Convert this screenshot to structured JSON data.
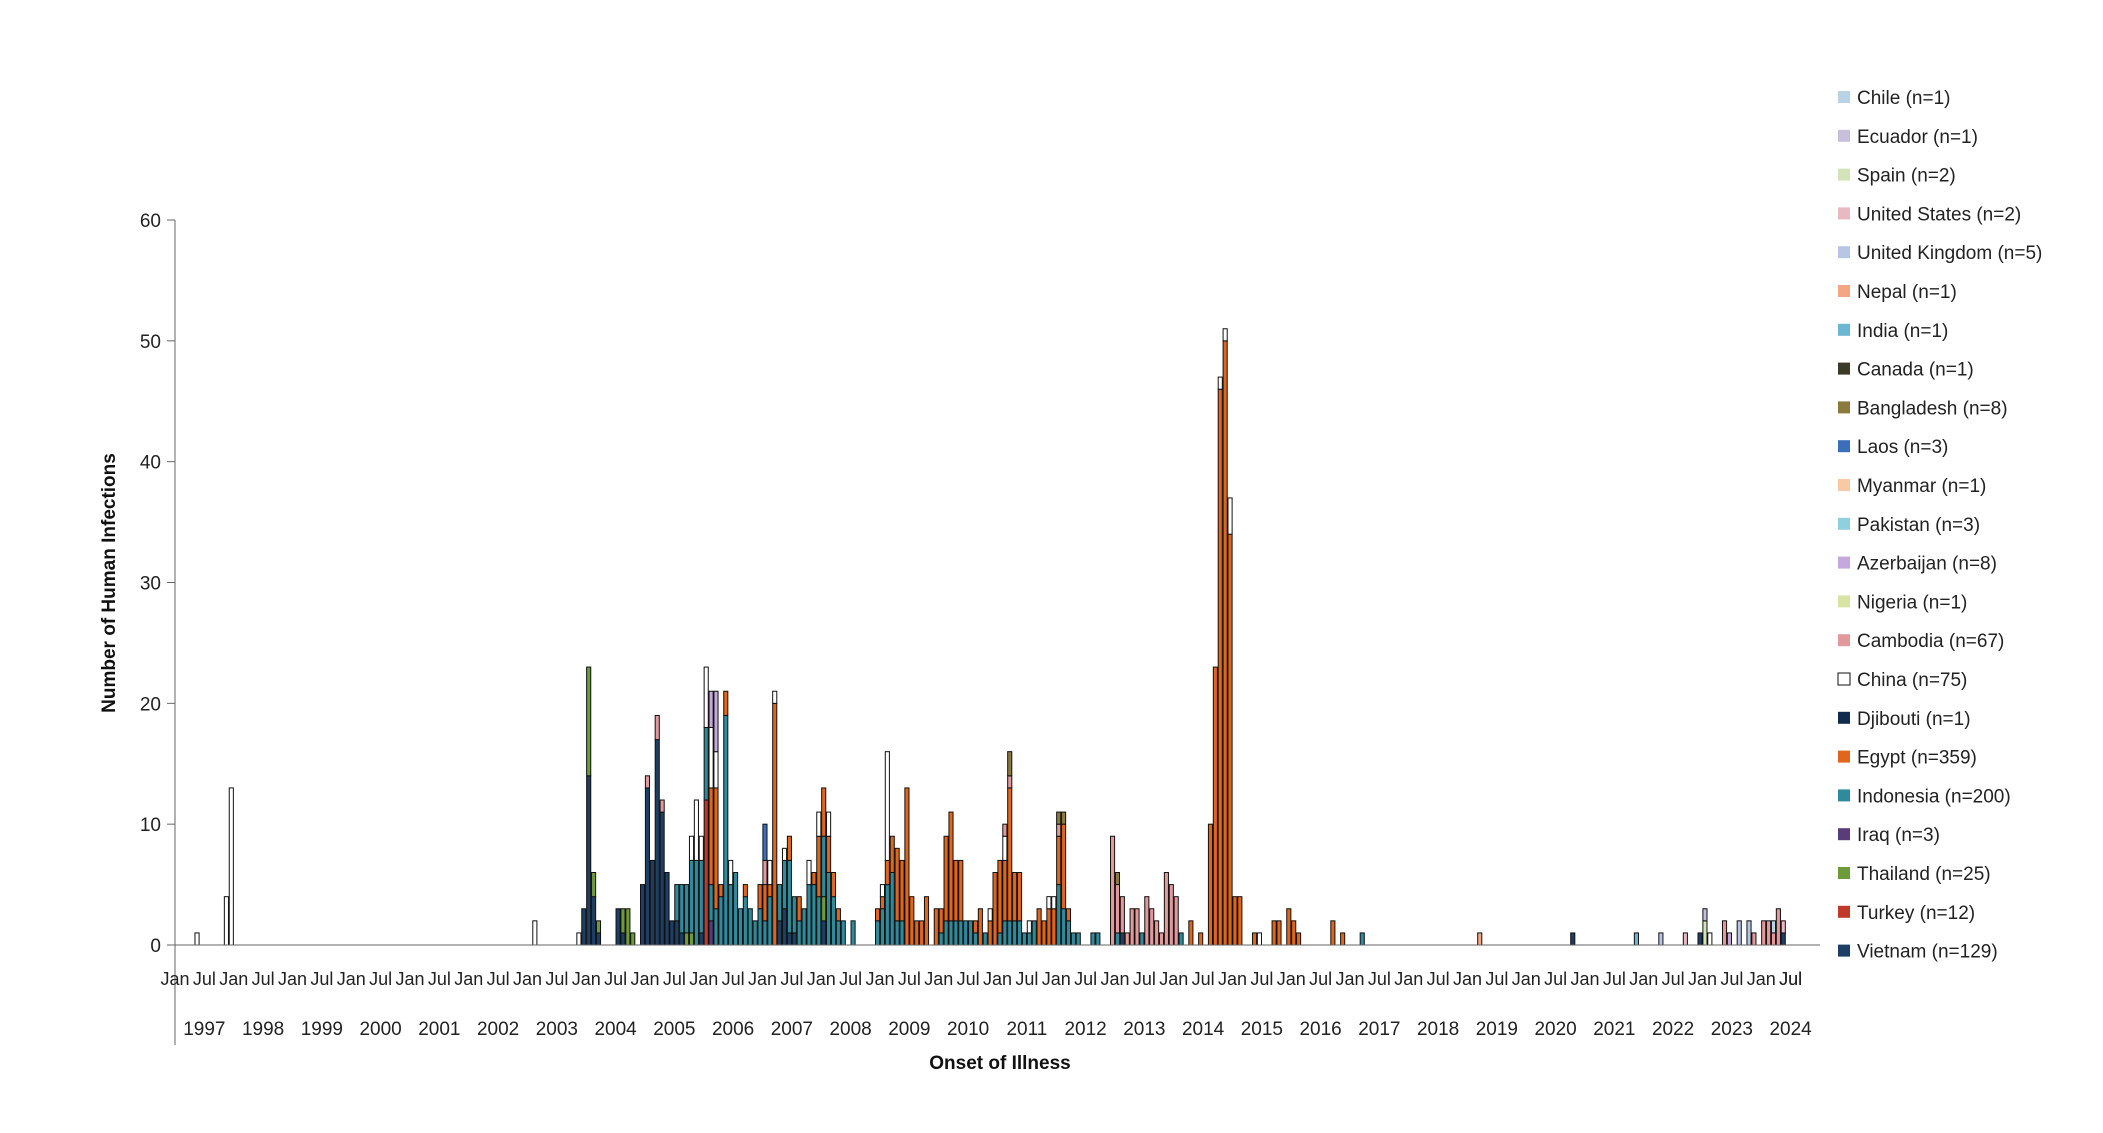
{
  "chart_data": {
    "type": "bar",
    "stacked": true,
    "ylabel": "Number of Human Infections",
    "xlabel": "Onset of Illness",
    "ylim": [
      0,
      60
    ],
    "yticks": [
      0,
      10,
      20,
      30,
      40,
      50,
      60
    ],
    "grid": false,
    "legend_position": "right",
    "x_start_year": 1997,
    "x_end_year": 2024,
    "month_tick_labels": [
      "Jan",
      "Jul"
    ],
    "year_labels": [
      "1997",
      "1998",
      "1999",
      "2000",
      "2001",
      "2002",
      "2003",
      "2004",
      "2005",
      "2006",
      "2007",
      "2008",
      "2009",
      "2010",
      "2011",
      "2012",
      "2013",
      "2014",
      "2015",
      "2016",
      "2017",
      "2018",
      "2019",
      "2020",
      "2021",
      "2022",
      "2023",
      "2024"
    ],
    "last_tick_label": "Jul",
    "legend": [
      {
        "name": "Chile (n=1)",
        "color": "#b9d3e6"
      },
      {
        "name": "Ecuador (n=1)",
        "color": "#c8bfdc"
      },
      {
        "name": "Spain (n=2)",
        "color": "#d3e4b8"
      },
      {
        "name": "United States (n=2)",
        "color": "#e8b9c0"
      },
      {
        "name": "United Kingdom (n=5)",
        "color": "#b8c6e6"
      },
      {
        "name": "Nepal (n=1)",
        "color": "#f4a582"
      },
      {
        "name": "India (n=1)",
        "color": "#6bb6d1"
      },
      {
        "name": "Canada (n=1)",
        "color": "#3a3a26"
      },
      {
        "name": "Bangladesh (n=8)",
        "color": "#8c7a3c"
      },
      {
        "name": "Laos (n=3)",
        "color": "#3c6fb9"
      },
      {
        "name": "Myanmar (n=1)",
        "color": "#f8c9a2"
      },
      {
        "name": "Pakistan (n=3)",
        "color": "#8ecfe0"
      },
      {
        "name": "Azerbaijan (n=8)",
        "color": "#c5a9dd"
      },
      {
        "name": "Nigeria (n=1)",
        "color": "#d8e4a3"
      },
      {
        "name": "Cambodia (n=67)",
        "color": "#e3999c"
      },
      {
        "name": "China (n=75)",
        "color": "#ffffff"
      },
      {
        "name": "Djibouti (n=1)",
        "color": "#102a4c"
      },
      {
        "name": "Egypt (n=359)",
        "color": "#e0661b"
      },
      {
        "name": "Indonesia (n=200)",
        "color": "#2f8a9c"
      },
      {
        "name": "Iraq (n=3)",
        "color": "#5a3d78"
      },
      {
        "name": "Thailand (n=25)",
        "color": "#6e9b3a"
      },
      {
        "name": "Turkey (n=12)",
        "color": "#c0392b"
      },
      {
        "name": "Vietnam (n=129)",
        "color": "#1d3f66"
      }
    ],
    "bars": [
      {
        "x": "1997-05",
        "stack": {
          "China": 1
        }
      },
      {
        "x": "1997-11",
        "stack": {
          "China": 4
        }
      },
      {
        "x": "1997-12",
        "stack": {
          "China": 13
        }
      },
      {
        "x": "2003-02",
        "stack": {
          "China": 2
        }
      },
      {
        "x": "2003-11",
        "stack": {
          "China": 1
        }
      },
      {
        "x": "2003-12",
        "stack": {
          "Vietnam": 3
        }
      },
      {
        "x": "2004-01",
        "stack": {
          "Vietnam": 14,
          "Thailand": 9
        }
      },
      {
        "x": "2004-02",
        "stack": {
          "Vietnam": 4,
          "Thailand": 2
        }
      },
      {
        "x": "2004-03",
        "stack": {
          "Vietnam": 1,
          "Thailand": 1
        }
      },
      {
        "x": "2004-07",
        "stack": {
          "Vietnam": 3
        }
      },
      {
        "x": "2004-08",
        "stack": {
          "Thailand": 2,
          "Vietnam": 1
        }
      },
      {
        "x": "2004-09",
        "stack": {
          "Thailand": 3
        }
      },
      {
        "x": "2004-10",
        "stack": {
          "Thailand": 1
        }
      },
      {
        "x": "2004-12",
        "stack": {
          "Vietnam": 5
        }
      },
      {
        "x": "2005-01",
        "stack": {
          "Vietnam": 13,
          "Cambodia": 1
        }
      },
      {
        "x": "2005-02",
        "stack": {
          "Vietnam": 7
        }
      },
      {
        "x": "2005-03",
        "stack": {
          "Vietnam": 17,
          "Cambodia": 2
        }
      },
      {
        "x": "2005-04",
        "stack": {
          "Vietnam": 11,
          "Cambodia": 1
        }
      },
      {
        "x": "2005-05",
        "stack": {
          "Vietnam": 6
        }
      },
      {
        "x": "2005-06",
        "stack": {
          "Vietnam": 2
        }
      },
      {
        "x": "2005-07",
        "stack": {
          "Indonesia": 3,
          "Vietnam": 2
        }
      },
      {
        "x": "2005-08",
        "stack": {
          "Indonesia": 4,
          "Vietnam": 1
        }
      },
      {
        "x": "2005-09",
        "stack": {
          "Indonesia": 4,
          "Thailand": 1
        }
      },
      {
        "x": "2005-10",
        "stack": {
          "Indonesia": 6,
          "Thailand": 1,
          "China": 2
        }
      },
      {
        "x": "2005-11",
        "stack": {
          "Indonesia": 7,
          "China": 5
        }
      },
      {
        "x": "2005-12",
        "stack": {
          "Indonesia": 6,
          "China": 2,
          "Vietnam": 1
        }
      },
      {
        "x": "2006-01",
        "stack": {
          "Turkey": 12,
          "Indonesia": 6,
          "China": 5
        }
      },
      {
        "x": "2006-02",
        "stack": {
          "Indonesia": 3,
          "Egypt": 8,
          "Iraq": 2,
          "Azerbaijan": 3,
          "China": 5
        }
      },
      {
        "x": "2006-03",
        "stack": {
          "Egypt": 10,
          "Indonesia": 3,
          "Azerbaijan": 5,
          "China": 3
        }
      },
      {
        "x": "2006-04",
        "stack": {
          "Indonesia": 4,
          "Egypt": 1
        }
      },
      {
        "x": "2006-05",
        "stack": {
          "Indonesia": 19,
          "Egypt": 2
        }
      },
      {
        "x": "2006-06",
        "stack": {
          "Indonesia": 5,
          "China": 2
        }
      },
      {
        "x": "2006-07",
        "stack": {
          "Indonesia": 6
        }
      },
      {
        "x": "2006-08",
        "stack": {
          "Indonesia": 3
        }
      },
      {
        "x": "2006-09",
        "stack": {
          "Indonesia": 4,
          "Egypt": 1
        }
      },
      {
        "x": "2006-10",
        "stack": {
          "Indonesia": 3
        }
      },
      {
        "x": "2006-11",
        "stack": {
          "Indonesia": 2
        }
      },
      {
        "x": "2006-12",
        "stack": {
          "Indonesia": 3,
          "Egypt": 2
        }
      },
      {
        "x": "2007-01",
        "stack": {
          "Indonesia": 2,
          "Egypt": 3,
          "Cambodia": 2,
          "Laos": 3
        }
      },
      {
        "x": "2007-02",
        "stack": {
          "Indonesia": 4,
          "Egypt": 1,
          "China": 2
        }
      },
      {
        "x": "2007-03",
        "stack": {
          "Egypt": 20,
          "China": 1
        }
      },
      {
        "x": "2007-04",
        "stack": {
          "Indonesia": 3,
          "Vietnam": 2
        }
      },
      {
        "x": "2007-05",
        "stack": {
          "Indonesia": 4,
          "Vietnam": 3,
          "China": 1
        }
      },
      {
        "x": "2007-06",
        "stack": {
          "Egypt": 2,
          "Indonesia": 6,
          "Vietnam": 1
        }
      },
      {
        "x": "2007-07",
        "stack": {
          "Indonesia": 3,
          "Vietnam": 1
        }
      },
      {
        "x": "2007-08",
        "stack": {
          "Indonesia": 2,
          "Egypt": 2
        }
      },
      {
        "x": "2007-09",
        "stack": {
          "Indonesia": 3
        }
      },
      {
        "x": "2007-10",
        "stack": {
          "Indonesia": 5,
          "China": 2
        }
      },
      {
        "x": "2007-11",
        "stack": {
          "Indonesia": 5,
          "Egypt": 1
        }
      },
      {
        "x": "2007-12",
        "stack": {
          "Indonesia": 4,
          "Egypt": 5,
          "China": 2
        }
      },
      {
        "x": "2008-01",
        "stack": {
          "Indonesia": 5,
          "Egypt": 4,
          "Vietnam": 2,
          "Thailand": 2
        }
      },
      {
        "x": "2008-02",
        "stack": {
          "Indonesia": 6,
          "Egypt": 3,
          "China": 2
        }
      },
      {
        "x": "2008-03",
        "stack": {
          "Indonesia": 4,
          "Egypt": 2
        }
      },
      {
        "x": "2008-04",
        "stack": {
          "Indonesia": 2,
          "Egypt": 1
        }
      },
      {
        "x": "2008-05",
        "stack": {
          "Indonesia": 2
        }
      },
      {
        "x": "2008-07",
        "stack": {
          "Indonesia": 2
        }
      },
      {
        "x": "2008-12",
        "stack": {
          "Indonesia": 2,
          "Egypt": 1
        }
      },
      {
        "x": "2009-01",
        "stack": {
          "Indonesia": 3,
          "Egypt": 1,
          "China": 1
        }
      },
      {
        "x": "2009-02",
        "stack": {
          "Indonesia": 5,
          "Egypt": 2,
          "China": 9
        }
      },
      {
        "x": "2009-03",
        "stack": {
          "Indonesia": 6,
          "Egypt": 3
        }
      },
      {
        "x": "2009-04",
        "stack": {
          "Egypt": 6,
          "Indonesia": 2
        }
      },
      {
        "x": "2009-05",
        "stack": {
          "Egypt": 5,
          "Indonesia": 2
        }
      },
      {
        "x": "2009-06",
        "stack": {
          "Egypt": 13
        }
      },
      {
        "x": "2009-07",
        "stack": {
          "Egypt": 4
        }
      },
      {
        "x": "2009-08",
        "stack": {
          "Egypt": 2
        }
      },
      {
        "x": "2009-09",
        "stack": {
          "Egypt": 2
        }
      },
      {
        "x": "2009-10",
        "stack": {
          "Egypt": 4
        }
      },
      {
        "x": "2009-12",
        "stack": {
          "Egypt": 3
        }
      },
      {
        "x": "2010-01",
        "stack": {
          "Egypt": 2,
          "Indonesia": 1
        }
      },
      {
        "x": "2010-02",
        "stack": {
          "Egypt": 7,
          "Indonesia": 2
        }
      },
      {
        "x": "2010-03",
        "stack": {
          "Egypt": 9,
          "Indonesia": 2
        }
      },
      {
        "x": "2010-04",
        "stack": {
          "Egypt": 5,
          "Indonesia": 2
        }
      },
      {
        "x": "2010-05",
        "stack": {
          "Egypt": 5,
          "Indonesia": 2
        }
      },
      {
        "x": "2010-06",
        "stack": {
          "Indonesia": 2
        }
      },
      {
        "x": "2010-07",
        "stack": {
          "Indonesia": 2
        }
      },
      {
        "x": "2010-08",
        "stack": {
          "Indonesia": 1,
          "Egypt": 1
        }
      },
      {
        "x": "2010-09",
        "stack": {
          "Egypt": 3
        }
      },
      {
        "x": "2010-10",
        "stack": {
          "Indonesia": 1
        }
      },
      {
        "x": "2010-11",
        "stack": {
          "Egypt": 2,
          "China": 1
        }
      },
      {
        "x": "2010-12",
        "stack": {
          "Egypt": 6
        }
      },
      {
        "x": "2011-01",
        "stack": {
          "Egypt": 6,
          "Indonesia": 1
        }
      },
      {
        "x": "2011-02",
        "stack": {
          "Egypt": 5,
          "Indonesia": 2,
          "Cambodia": 1,
          "China": 2
        }
      },
      {
        "x": "2011-03",
        "stack": {
          "Egypt": 11,
          "Indonesia": 2,
          "Cambodia": 1,
          "Bangladesh": 2
        }
      },
      {
        "x": "2011-04",
        "stack": {
          "Egypt": 4,
          "Indonesia": 2
        }
      },
      {
        "x": "2011-05",
        "stack": {
          "Egypt": 4,
          "Indonesia": 2
        }
      },
      {
        "x": "2011-06",
        "stack": {
          "Indonesia": 1
        }
      },
      {
        "x": "2011-07",
        "stack": {
          "Indonesia": 1,
          "China": 1
        }
      },
      {
        "x": "2011-08",
        "stack": {
          "Indonesia": 2
        }
      },
      {
        "x": "2011-09",
        "stack": {
          "Egypt": 3
        }
      },
      {
        "x": "2011-10",
        "stack": {
          "Egypt": 2
        }
      },
      {
        "x": "2011-11",
        "stack": {
          "Egypt": 3,
          "China": 1
        }
      },
      {
        "x": "2011-12",
        "stack": {
          "Egypt": 3,
          "China": 1
        }
      },
      {
        "x": "2012-01",
        "stack": {
          "Indonesia": 5,
          "Egypt": 4,
          "Cambodia": 1,
          "Bangladesh": 1
        }
      },
      {
        "x": "2012-02",
        "stack": {
          "Indonesia": 3,
          "Egypt": 7,
          "Bangladesh": 1
        }
      },
      {
        "x": "2012-03",
        "stack": {
          "Indonesia": 2,
          "Egypt": 1
        }
      },
      {
        "x": "2012-04",
        "stack": {
          "Indonesia": 1
        }
      },
      {
        "x": "2012-05",
        "stack": {
          "Indonesia": 1
        }
      },
      {
        "x": "2012-08",
        "stack": {
          "Indonesia": 1
        }
      },
      {
        "x": "2012-09",
        "stack": {
          "Indonesia": 1
        }
      },
      {
        "x": "2012-12",
        "stack": {
          "Cambodia": 9
        }
      },
      {
        "x": "2013-01",
        "stack": {
          "Cambodia": 4,
          "Indonesia": 1,
          "Bangladesh": 1
        }
      },
      {
        "x": "2013-02",
        "stack": {
          "Cambodia": 3,
          "Vietnam": 1
        }
      },
      {
        "x": "2013-03",
        "stack": {
          "Cambodia": 1
        }
      },
      {
        "x": "2013-04",
        "stack": {
          "Cambodia": 3
        }
      },
      {
        "x": "2013-05",
        "stack": {
          "Cambodia": 3
        }
      },
      {
        "x": "2013-06",
        "stack": {
          "Indonesia": 1
        }
      },
      {
        "x": "2013-07",
        "stack": {
          "Cambodia": 4
        }
      },
      {
        "x": "2013-08",
        "stack": {
          "Cambodia": 3
        }
      },
      {
        "x": "2013-09",
        "stack": {
          "Cambodia": 2
        }
      },
      {
        "x": "2013-10",
        "stack": {
          "Cambodia": 1
        }
      },
      {
        "x": "2013-11",
        "stack": {
          "Cambodia": 6
        }
      },
      {
        "x": "2013-12",
        "stack": {
          "Cambodia": 5
        }
      },
      {
        "x": "2014-01",
        "stack": {
          "Cambodia": 4
        }
      },
      {
        "x": "2014-02",
        "stack": {
          "Indonesia": 1
        }
      },
      {
        "x": "2014-04",
        "stack": {
          "Egypt": 2
        }
      },
      {
        "x": "2014-06",
        "stack": {
          "Egypt": 1
        }
      },
      {
        "x": "2014-08",
        "stack": {
          "Egypt": 10
        }
      },
      {
        "x": "2014-09",
        "stack": {
          "Egypt": 23
        }
      },
      {
        "x": "2014-10",
        "stack": {
          "Egypt": 46,
          "China": 1
        }
      },
      {
        "x": "2014-11",
        "stack": {
          "Egypt": 50,
          "China": 1
        }
      },
      {
        "x": "2014-12",
        "stack": {
          "Egypt": 34,
          "China": 3
        }
      },
      {
        "x": "2015-01",
        "stack": {
          "Egypt": 4
        }
      },
      {
        "x": "2015-02",
        "stack": {
          "Egypt": 4
        }
      },
      {
        "x": "2015-05",
        "stack": {
          "Egypt": 1
        }
      },
      {
        "x": "2015-06",
        "stack": {
          "China": 1
        }
      },
      {
        "x": "2015-09",
        "stack": {
          "Egypt": 2
        }
      },
      {
        "x": "2015-10",
        "stack": {
          "Egypt": 2
        }
      },
      {
        "x": "2015-12",
        "stack": {
          "Egypt": 3
        }
      },
      {
        "x": "2016-01",
        "stack": {
          "Egypt": 2
        }
      },
      {
        "x": "2016-02",
        "stack": {
          "Egypt": 1
        }
      },
      {
        "x": "2016-09",
        "stack": {
          "Egypt": 2
        }
      },
      {
        "x": "2016-11",
        "stack": {
          "Egypt": 1
        }
      },
      {
        "x": "2017-03",
        "stack": {
          "Indonesia": 1
        }
      },
      {
        "x": "2019-03",
        "stack": {
          "Nepal": 1
        }
      },
      {
        "x": "2020-10",
        "stack": {
          "Vietnam": 1
        }
      },
      {
        "x": "2021-11",
        "stack": {
          "India": 1
        }
      },
      {
        "x": "2022-04",
        "stack": {
          "United Kingdom": 1
        }
      },
      {
        "x": "2022-09",
        "stack": {
          "United States": 1
        }
      },
      {
        "x": "2022-12",
        "stack": {
          "Vietnam": 1
        }
      },
      {
        "x": "2023-01",
        "stack": {
          "Spain": 2,
          "Ecuador": 1
        }
      },
      {
        "x": "2023-02",
        "stack": {
          "China": 1
        }
      },
      {
        "x": "2023-05",
        "stack": {
          "Cambodia": 2
        }
      },
      {
        "x": "2023-06",
        "stack": {
          "Azerbaijan": 1
        }
      },
      {
        "x": "2023-08",
        "stack": {
          "United Kingdom": 2
        }
      },
      {
        "x": "2023-10",
        "stack": {
          "United Kingdom": 2
        }
      },
      {
        "x": "2023-11",
        "stack": {
          "Cambodia": 1
        }
      },
      {
        "x": "2024-01",
        "stack": {
          "Cambodia": 2
        }
      },
      {
        "x": "2024-02",
        "stack": {
          "Cambodia": 2
        }
      },
      {
        "x": "2024-03",
        "stack": {
          "Cambodia": 1,
          "Chile": 1
        }
      },
      {
        "x": "2024-04",
        "stack": {
          "Cambodia": 3
        }
      },
      {
        "x": "2024-05",
        "stack": {
          "United States": 1,
          "Vietnam": 1
        }
      }
    ]
  }
}
